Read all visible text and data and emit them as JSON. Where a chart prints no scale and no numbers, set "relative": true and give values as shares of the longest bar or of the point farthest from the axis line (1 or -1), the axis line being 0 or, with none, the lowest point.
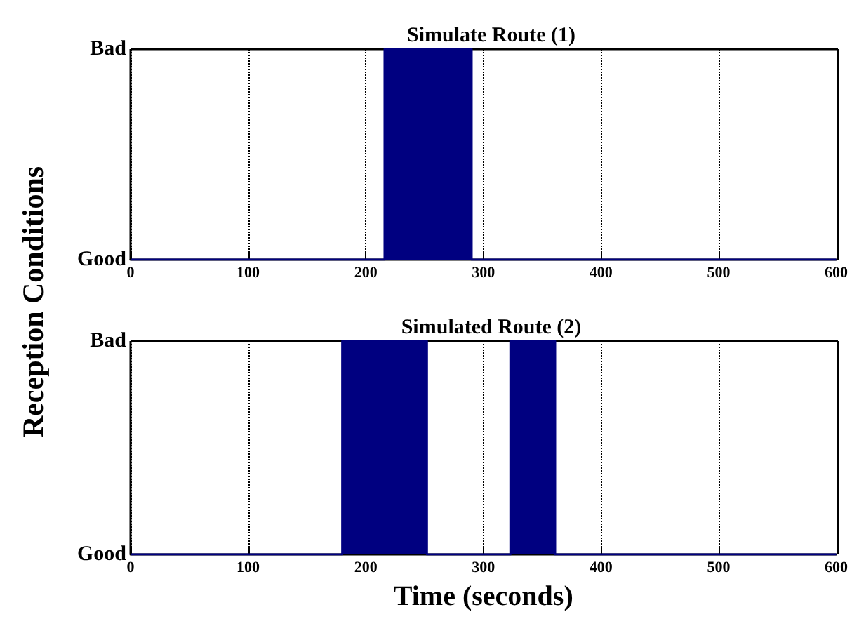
{
  "chart_data": [
    {
      "type": "area",
      "title": "Simulate Route (1)",
      "ylabel": "Reception Conditions",
      "relative": true,
      "annotations": [
        "Bad",
        "Good"
      ],
      "x": [
        0,
        216,
        216,
        290,
        290,
        600
      ],
      "series": [
        {
          "color": "#000080",
          "values": [
            0,
            0,
            1,
            1,
            0,
            0
          ]
        }
      ],
      "xlim": [
        0,
        600
      ],
      "xticks": [
        0,
        100,
        200,
        300,
        400,
        500,
        600
      ],
      "grid": "x"
    },
    {
      "type": "area",
      "title": "Simulated Route (2)",
      "xlabel": "Time (seconds)",
      "relative": true,
      "annotations": [
        "Bad",
        "Good"
      ],
      "x": [
        0,
        180,
        180,
        252,
        252,
        323,
        323,
        361,
        361,
        600
      ],
      "series": [
        {
          "color": "#000080",
          "values": [
            0,
            0,
            1,
            1,
            0,
            0,
            1,
            1,
            0,
            0
          ]
        }
      ],
      "xlim": [
        0,
        600
      ],
      "xticks": [
        0,
        100,
        200,
        300,
        400,
        500,
        600
      ],
      "grid": "x"
    }
  ]
}
